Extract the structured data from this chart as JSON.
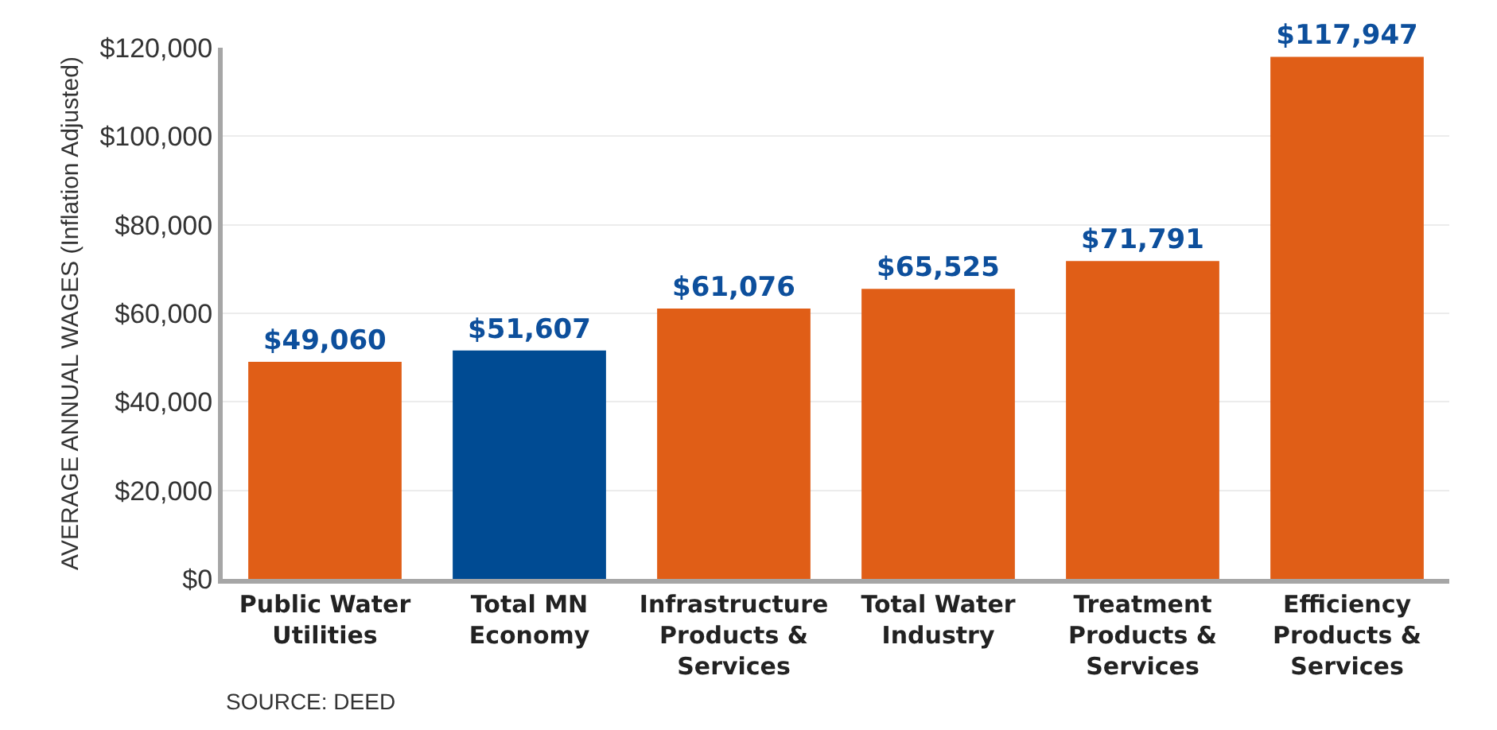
{
  "chart_data": {
    "type": "bar",
    "ylabel": "AVERAGE ANNUAL WAGES (Inflation Adjusted)",
    "categories": [
      "Public Water Utilities",
      "Total MN Economy",
      "Infrastructure Products & Services",
      "Total Water Industry",
      "Treatment Products & Services",
      "Efficiency Products & Services"
    ],
    "values": [
      49060,
      51607,
      61076,
      65525,
      71791,
      117947
    ],
    "colors": [
      "#e05e17",
      "#004b93",
      "#e05e17",
      "#e05e17",
      "#e05e17",
      "#e05e17"
    ],
    "value_labels": [
      "$49,060",
      "$51,607",
      "$61,076",
      "$65,525",
      "$71,791",
      "$117,947"
    ],
    "ylim": [
      0,
      120000
    ],
    "yticks": [
      {
        "value": 0,
        "label": "$0"
      },
      {
        "value": 20000,
        "label": "$20,000"
      },
      {
        "value": 40000,
        "label": "$40,000"
      },
      {
        "value": 60000,
        "label": "$60,000"
      },
      {
        "value": 80000,
        "label": "$80,000"
      },
      {
        "value": 100000,
        "label": "$100,000"
      },
      {
        "value": 120000,
        "label": "$120,000"
      }
    ],
    "grid": "y",
    "annotations": [
      "SOURCE: DEED"
    ]
  }
}
